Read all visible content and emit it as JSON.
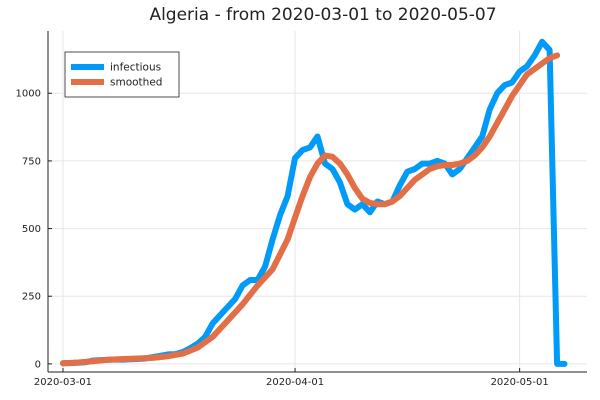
{
  "chart_data": {
    "type": "line",
    "title": "Algeria - from 2020-03-01 to 2020-05-07",
    "xlabel": "",
    "ylabel": "",
    "x_axis": "date",
    "xlim": [
      "2020-02-28",
      "2020-05-10"
    ],
    "ylim": [
      -30,
      1230
    ],
    "x_ticks": [
      "2020-03-01",
      "2020-04-01",
      "2020-05-01"
    ],
    "y_ticks": [
      0,
      250,
      500,
      750,
      1000
    ],
    "grid": true,
    "legend": "top-left",
    "series": [
      {
        "name": "infectious",
        "color": "#009af9",
        "x": [
          "2020-03-01",
          "2020-03-02",
          "2020-03-03",
          "2020-03-04",
          "2020-03-05",
          "2020-03-06",
          "2020-03-07",
          "2020-03-08",
          "2020-03-09",
          "2020-03-10",
          "2020-03-11",
          "2020-03-12",
          "2020-03-13",
          "2020-03-14",
          "2020-03-15",
          "2020-03-16",
          "2020-03-17",
          "2020-03-18",
          "2020-03-19",
          "2020-03-20",
          "2020-03-21",
          "2020-03-22",
          "2020-03-23",
          "2020-03-24",
          "2020-03-25",
          "2020-03-26",
          "2020-03-27",
          "2020-03-28",
          "2020-03-29",
          "2020-03-30",
          "2020-03-31",
          "2020-04-01",
          "2020-04-02",
          "2020-04-03",
          "2020-04-04",
          "2020-04-05",
          "2020-04-06",
          "2020-04-07",
          "2020-04-08",
          "2020-04-09",
          "2020-04-10",
          "2020-04-11",
          "2020-04-12",
          "2020-04-13",
          "2020-04-14",
          "2020-04-15",
          "2020-04-16",
          "2020-04-17",
          "2020-04-18",
          "2020-04-19",
          "2020-04-20",
          "2020-04-21",
          "2020-04-22",
          "2020-04-23",
          "2020-04-24",
          "2020-04-25",
          "2020-04-26",
          "2020-04-27",
          "2020-04-28",
          "2020-04-29",
          "2020-04-30",
          "2020-05-01",
          "2020-05-02",
          "2020-05-03",
          "2020-05-04",
          "2020-05-05",
          "2020-05-06",
          "2020-05-07"
        ],
        "y": [
          2,
          3,
          4,
          6,
          12,
          14,
          15,
          16,
          16,
          17,
          18,
          20,
          25,
          30,
          35,
          36,
          44,
          58,
          75,
          100,
          150,
          180,
          210,
          240,
          290,
          310,
          310,
          360,
          460,
          550,
          620,
          760,
          790,
          800,
          840,
          740,
          720,
          670,
          590,
          570,
          590,
          560,
          600,
          590,
          600,
          660,
          710,
          720,
          740,
          740,
          750,
          740,
          700,
          720,
          760,
          800,
          840,
          940,
          1000,
          1030,
          1040,
          1080,
          1100,
          1140,
          1190,
          1160,
          0,
          0
        ]
      },
      {
        "name": "smoothed",
        "color": "#e26f46",
        "x": [
          "2020-03-01",
          "2020-03-03",
          "2020-03-05",
          "2020-03-07",
          "2020-03-09",
          "2020-03-11",
          "2020-03-13",
          "2020-03-15",
          "2020-03-17",
          "2020-03-19",
          "2020-03-21",
          "2020-03-23",
          "2020-03-25",
          "2020-03-27",
          "2020-03-29",
          "2020-03-31",
          "2020-04-01",
          "2020-04-02",
          "2020-04-03",
          "2020-04-04",
          "2020-04-05",
          "2020-04-06",
          "2020-04-07",
          "2020-04-08",
          "2020-04-09",
          "2020-04-10",
          "2020-04-11",
          "2020-04-12",
          "2020-04-13",
          "2020-04-14",
          "2020-04-15",
          "2020-04-16",
          "2020-04-17",
          "2020-04-18",
          "2020-04-19",
          "2020-04-20",
          "2020-04-21",
          "2020-04-22",
          "2020-04-23",
          "2020-04-24",
          "2020-04-25",
          "2020-04-26",
          "2020-04-27",
          "2020-04-28",
          "2020-04-29",
          "2020-04-30",
          "2020-05-01",
          "2020-05-02",
          "2020-05-03",
          "2020-05-04",
          "2020-05-05",
          "2020-05-06"
        ],
        "y": [
          2,
          5,
          10,
          15,
          18,
          20,
          22,
          28,
          38,
          60,
          100,
          160,
          220,
          290,
          350,
          460,
          540,
          620,
          690,
          740,
          770,
          765,
          740,
          700,
          650,
          610,
          595,
          590,
          590,
          600,
          620,
          650,
          680,
          700,
          720,
          730,
          735,
          735,
          740,
          750,
          770,
          800,
          840,
          890,
          940,
          990,
          1030,
          1070,
          1090,
          1110,
          1130,
          1140
        ]
      }
    ]
  }
}
